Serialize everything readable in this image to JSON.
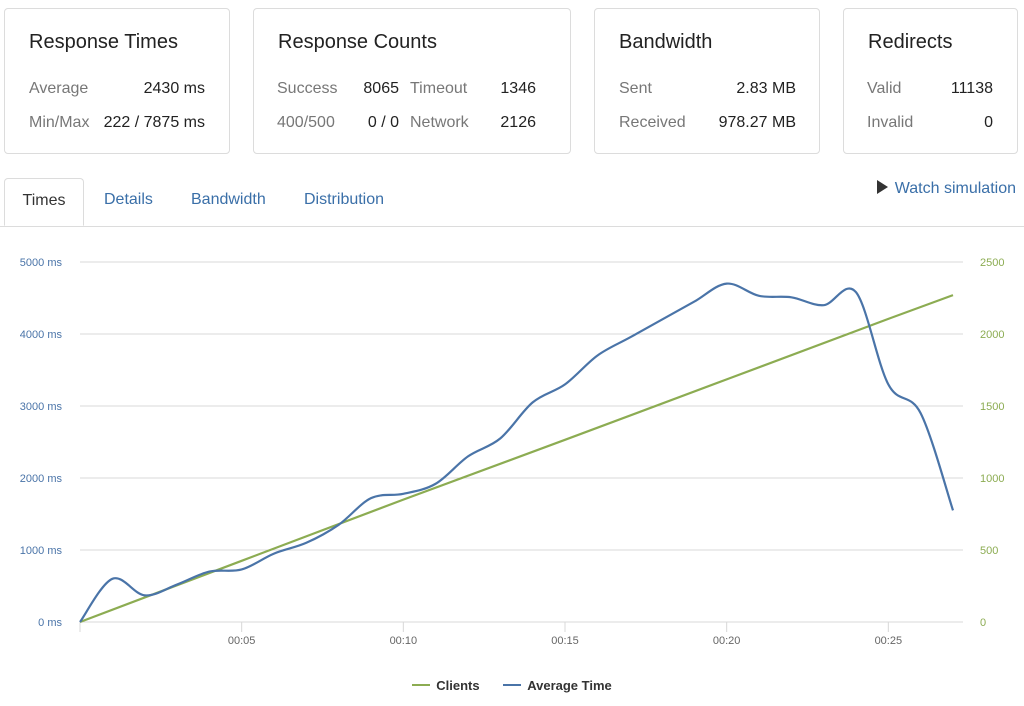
{
  "cards": {
    "response_times": {
      "title": "Response Times",
      "rows": [
        {
          "label": "Average",
          "value": "2430 ms"
        },
        {
          "label": "Min/Max",
          "value": "222 / 7875 ms"
        }
      ]
    },
    "response_counts": {
      "title": "Response Counts",
      "left": [
        {
          "label": "Success",
          "value": "8065"
        },
        {
          "label": "400/500",
          "value": "0 / 0"
        }
      ],
      "right": [
        {
          "label": "Timeout",
          "value": "1346"
        },
        {
          "label": "Network",
          "value": "2126"
        }
      ]
    },
    "bandwidth": {
      "title": "Bandwidth",
      "rows": [
        {
          "label": "Sent",
          "value": "2.83 MB"
        },
        {
          "label": "Received",
          "value": "978.27 MB"
        }
      ]
    },
    "redirects": {
      "title": "Redirects",
      "rows": [
        {
          "label": "Valid",
          "value": "11138"
        },
        {
          "label": "Invalid",
          "value": "0"
        }
      ]
    }
  },
  "tabs": [
    "Times",
    "Details",
    "Bandwidth",
    "Distribution"
  ],
  "active_tab": "Times",
  "watch_simulation": "Watch simulation",
  "colors": {
    "clients": "#8cac52",
    "average_time": "#4a74a8",
    "left_axis": "#4a74a8",
    "right_axis": "#8cac52",
    "grid": "#d8d8d8"
  },
  "chart_data": {
    "type": "line",
    "x_ticks": [
      "00:05",
      "00:10",
      "00:15",
      "00:20",
      "00:25"
    ],
    "x_range": [
      0,
      27
    ],
    "y_left": {
      "ticks": [
        "0 ms",
        "1000 ms",
        "2000 ms",
        "3000 ms",
        "4000 ms",
        "5000 ms"
      ],
      "range": [
        0,
        5000
      ]
    },
    "y_right": {
      "ticks": [
        "0",
        "500",
        "1000",
        "1500",
        "2000",
        "2500"
      ],
      "range": [
        0,
        2500
      ]
    },
    "grid": true,
    "legend_position": "bottom-center",
    "series": [
      {
        "name": "Clients",
        "axis": "right",
        "color": "#8cac52",
        "x": [
          0,
          5,
          10,
          15,
          20,
          25,
          27
        ],
        "y": [
          0,
          425,
          850,
          1265,
          1685,
          2105,
          2270
        ]
      },
      {
        "name": "Average Time",
        "axis": "left",
        "color": "#4a74a8",
        "x": [
          0,
          1,
          2,
          3,
          4,
          5,
          6,
          7,
          8,
          9,
          10,
          11,
          12,
          13,
          14,
          15,
          16,
          17,
          18,
          19,
          20,
          21,
          22,
          23,
          24,
          25,
          26,
          27
        ],
        "y": [
          0,
          600,
          370,
          520,
          700,
          730,
          950,
          1100,
          1350,
          1720,
          1780,
          1920,
          2300,
          2550,
          3050,
          3300,
          3700,
          3950,
          4200,
          4450,
          4700,
          4530,
          4510,
          4400,
          4580,
          3300,
          2900,
          1550
        ]
      }
    ]
  }
}
